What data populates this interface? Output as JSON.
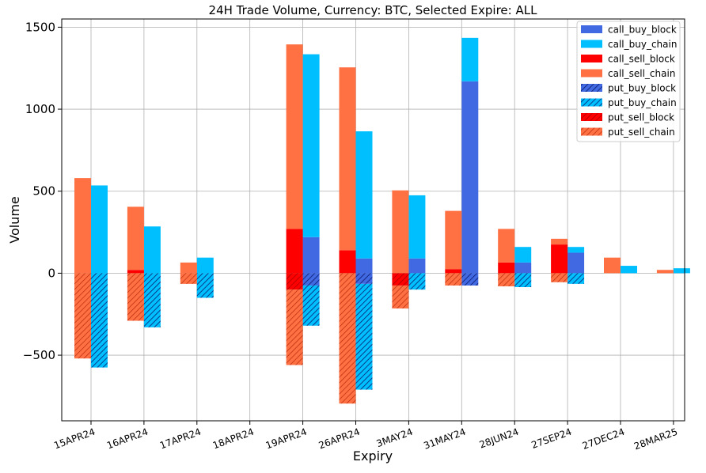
{
  "chart_data": {
    "type": "bar",
    "title": "24H Trade Volume, Currency: BTC, Selected Expire: ALL",
    "xlabel": "Expiry",
    "ylabel": "Volume",
    "ylim": [
      -900,
      1550
    ],
    "yticks": [
      -500,
      0,
      500,
      1000,
      1500
    ],
    "ytick_labels": [
      "−500",
      "0",
      "500",
      "1000",
      "1500"
    ],
    "grid": true,
    "legend_position": "top-right",
    "categories": [
      "15APR24",
      "16APR24",
      "17APR24",
      "18APR24",
      "19APR24",
      "26APR24",
      "3MAY24",
      "31MAY24",
      "28JUN24",
      "27SEP24",
      "27DEC24",
      "28MAR25"
    ],
    "series": [
      {
        "name": "call_buy_block",
        "group": "buy",
        "color": "#4169e1",
        "hatch": false,
        "values": [
          0,
          0,
          0,
          0,
          220,
          90,
          90,
          1170,
          65,
          125,
          0,
          0
        ]
      },
      {
        "name": "call_buy_chain",
        "group": "buy",
        "color": "#00bfff",
        "hatch": false,
        "values": [
          535,
          285,
          95,
          0,
          1115,
          775,
          385,
          265,
          95,
          35,
          45,
          30
        ]
      },
      {
        "name": "call_sell_block",
        "group": "sell",
        "color": "#ff0000",
        "hatch": false,
        "values": [
          0,
          20,
          0,
          0,
          270,
          140,
          0,
          25,
          65,
          175,
          0,
          0
        ]
      },
      {
        "name": "call_sell_chain",
        "group": "sell",
        "color": "#ff7043",
        "hatch": false,
        "values": [
          580,
          385,
          65,
          0,
          1125,
          1115,
          505,
          355,
          205,
          35,
          95,
          20
        ]
      },
      {
        "name": "put_buy_block",
        "group": "buy",
        "color": "#4169e1",
        "hatch": true,
        "values": [
          0,
          0,
          0,
          0,
          -75,
          -65,
          0,
          -75,
          0,
          0,
          0,
          0
        ]
      },
      {
        "name": "put_buy_chain",
        "group": "buy",
        "color": "#00bfff",
        "hatch": true,
        "values": [
          -575,
          -330,
          -150,
          0,
          -245,
          -645,
          -100,
          0,
          -85,
          -65,
          0,
          0
        ]
      },
      {
        "name": "put_sell_block",
        "group": "sell",
        "color": "#ff0000",
        "hatch": true,
        "values": [
          0,
          0,
          0,
          0,
          -100,
          0,
          -75,
          0,
          0,
          0,
          0,
          0
        ]
      },
      {
        "name": "put_sell_chain",
        "group": "sell",
        "color": "#ff7043",
        "hatch": true,
        "values": [
          -520,
          -290,
          -65,
          0,
          -460,
          -795,
          -140,
          -75,
          -80,
          -55,
          0,
          0
        ]
      }
    ]
  }
}
